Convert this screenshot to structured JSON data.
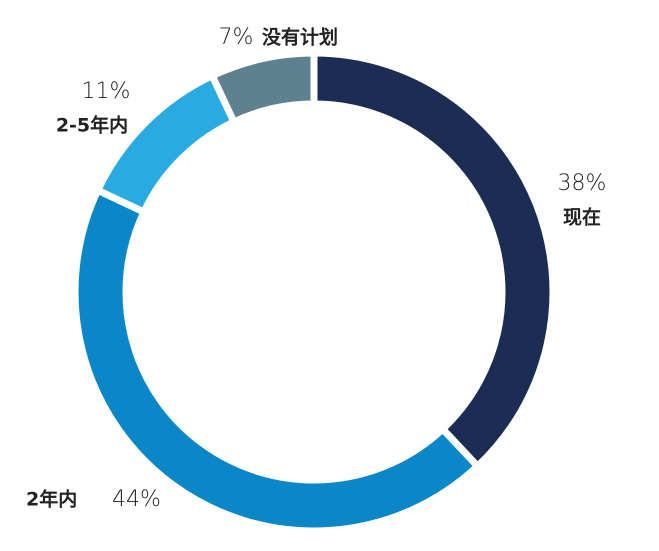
{
  "chart_data": {
    "type": "donut",
    "categories": [
      "现在",
      "2年内",
      "2-5年内",
      "没有计划"
    ],
    "values": [
      38,
      44,
      11,
      7
    ],
    "value_labels": [
      "38%",
      "44%",
      "11%",
      "7%"
    ],
    "colors": [
      "#1b2d55",
      "#0a87c9",
      "#29abe2",
      "#5e8190"
    ]
  }
}
